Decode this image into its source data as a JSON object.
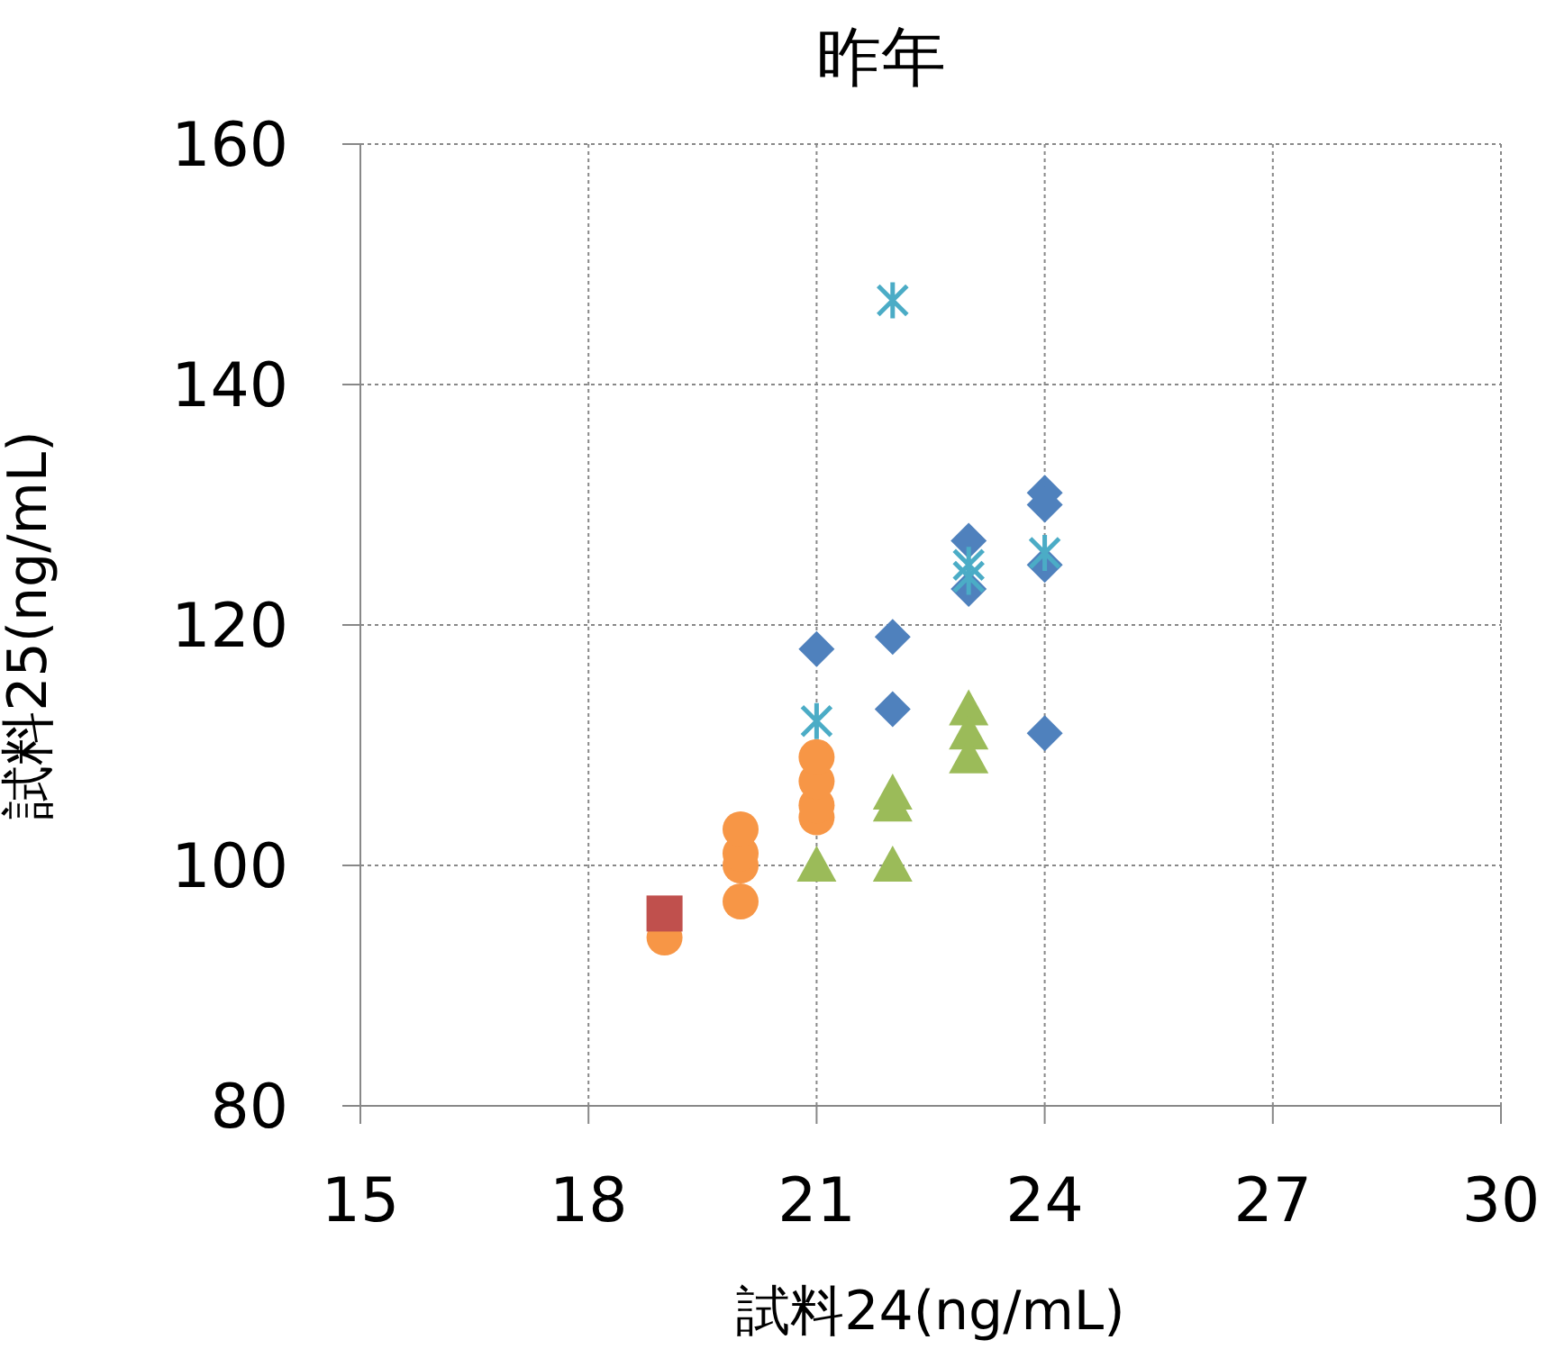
{
  "chart_data": {
    "type": "scatter",
    "title": "昨年",
    "xlabel": "試料24(ng/mL)",
    "ylabel": "試料25(ng/mL)",
    "xlim": [
      15,
      30
    ],
    "xticks": [
      15,
      18,
      21,
      24,
      27,
      30
    ],
    "ylim": [
      80,
      160
    ],
    "yticks": [
      80,
      100,
      120,
      140,
      160
    ],
    "grid": true,
    "series": [
      {
        "color": "#4f81bd",
        "marker": "diamond",
        "x": [
          21,
          22,
          22,
          23,
          23,
          24,
          24,
          24,
          24
        ],
        "values": [
          118,
          119,
          113,
          127,
          123,
          131,
          130,
          125,
          111
        ]
      },
      {
        "color": "#f79646",
        "marker": "circle",
        "x": [
          19,
          20,
          20,
          20,
          20,
          21,
          21,
          21,
          21
        ],
        "values": [
          94,
          97,
          100,
          101,
          103,
          104,
          105,
          107,
          109
        ]
      },
      {
        "color": "#c0504d",
        "marker": "square",
        "x": [
          19
        ],
        "values": [
          96
        ]
      },
      {
        "color": "#9bbb59",
        "marker": "triangle",
        "x": [
          21,
          22,
          22,
          22,
          23,
          23,
          23
        ],
        "values": [
          100,
          100,
          105,
          106,
          113,
          111,
          109
        ]
      },
      {
        "color": "#4bacc6",
        "marker": "cross",
        "x": [
          22,
          21,
          23,
          23,
          24
        ],
        "values": [
          147,
          112,
          125,
          124,
          126
        ]
      }
    ]
  }
}
